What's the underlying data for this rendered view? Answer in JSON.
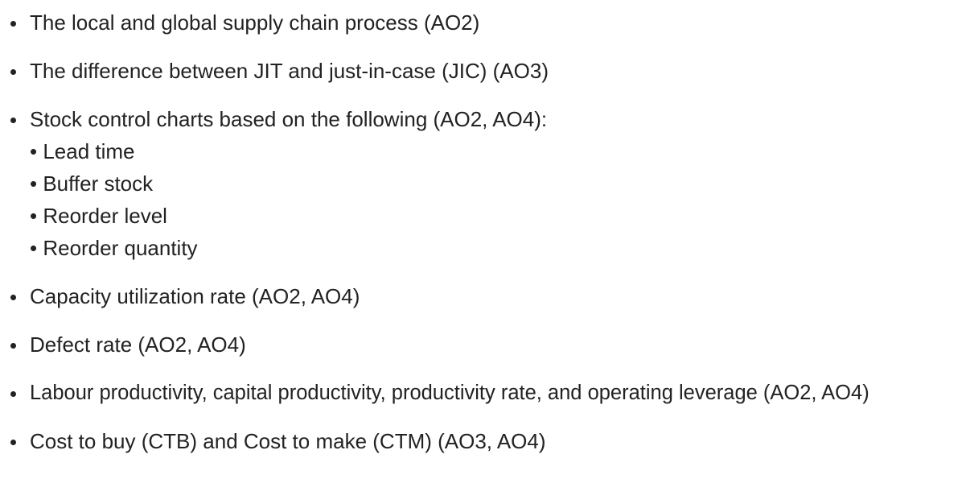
{
  "items": [
    {
      "text": "The local and global supply chain process (AO2)"
    },
    {
      "text": "The difference between JIT and just-in-case (JIC) (AO3)"
    },
    {
      "text": "Stock control charts based on the following (AO2, AO4):",
      "sub": [
        "• Lead time",
        "• Buffer stock",
        "• Reorder level",
        "• Reorder quantity"
      ]
    },
    {
      "text": "Capacity utilization rate (AO2, AO4)"
    },
    {
      "text": "Defect rate (AO2, AO4)"
    },
    {
      "text": "Labour productivity, capital productivity, productivity rate, and operating leverage (AO2, AO4)"
    },
    {
      "text": "Cost to buy (CTB) and Cost to make (CTM) (AO3, AO4)"
    }
  ]
}
